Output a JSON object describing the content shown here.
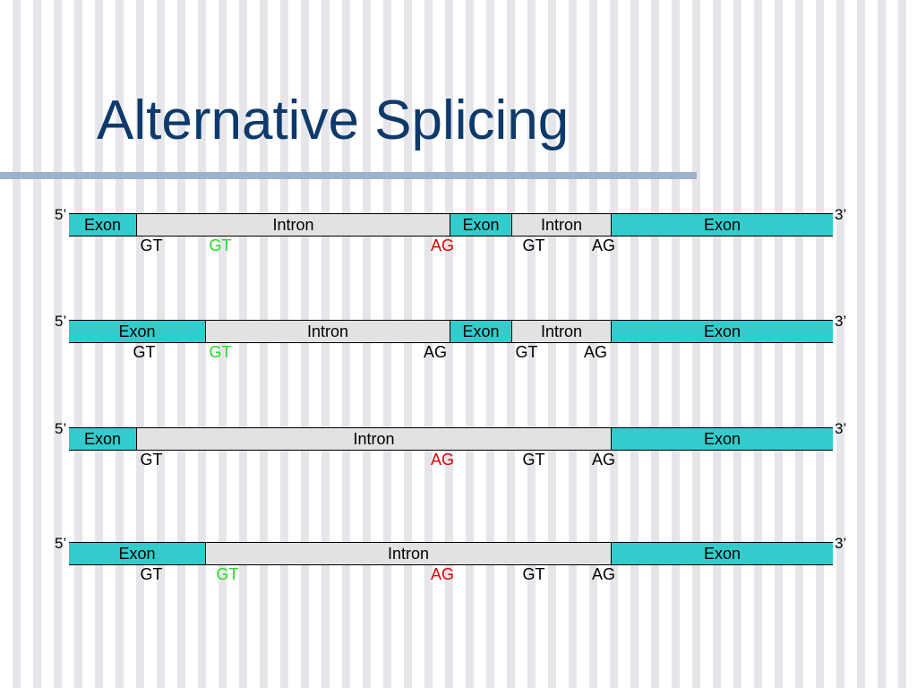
{
  "title": "Alternative Splicing",
  "colors": {
    "title": "#0e3a6b",
    "exon": "#33cccc",
    "intron": "#e2e2e2",
    "green": "#22dd22",
    "red": "#dd0000",
    "black": "#000000"
  },
  "rows": [
    {
      "five_prime": "5’",
      "three_prime": "3’",
      "segments": [
        {
          "type": "exon",
          "label": "Exon"
        },
        {
          "type": "intron",
          "label": "Intron"
        },
        {
          "type": "exon",
          "label": "Exon"
        },
        {
          "type": "intron",
          "label": "Intron"
        },
        {
          "type": "exon",
          "label": "Exon"
        }
      ],
      "sites": [
        {
          "label": "GT",
          "color": "black"
        },
        {
          "label": "GT",
          "color": "green"
        },
        {
          "label": "AG",
          "color": "red"
        },
        {
          "label": "GT",
          "color": "black"
        },
        {
          "label": "AG",
          "color": "black"
        }
      ]
    },
    {
      "five_prime": "5’",
      "three_prime": "3’",
      "segments": [
        {
          "type": "exon",
          "label": "Exon"
        },
        {
          "type": "intron",
          "label": "Intron"
        },
        {
          "type": "exon",
          "label": "Exon"
        },
        {
          "type": "intron",
          "label": "Intron"
        },
        {
          "type": "exon",
          "label": "Exon"
        }
      ],
      "sites": [
        {
          "label": "GT",
          "color": "black"
        },
        {
          "label": "GT",
          "color": "green"
        },
        {
          "label": "AG",
          "color": "black"
        },
        {
          "label": "GT",
          "color": "black"
        },
        {
          "label": "AG",
          "color": "black"
        }
      ]
    },
    {
      "five_prime": "5’",
      "three_prime": "3’",
      "segments": [
        {
          "type": "exon",
          "label": "Exon"
        },
        {
          "type": "intron",
          "label": "Intron"
        },
        {
          "type": "exon",
          "label": "Exon"
        }
      ],
      "sites": [
        {
          "label": "GT",
          "color": "black"
        },
        {
          "label": "AG",
          "color": "red"
        },
        {
          "label": "GT",
          "color": "black"
        },
        {
          "label": "AG",
          "color": "black"
        }
      ]
    },
    {
      "five_prime": "5’",
      "three_prime": "3’",
      "segments": [
        {
          "type": "exon",
          "label": "Exon"
        },
        {
          "type": "intron",
          "label": "Intron"
        },
        {
          "type": "exon",
          "label": "Exon"
        }
      ],
      "sites": [
        {
          "label": "GT",
          "color": "black"
        },
        {
          "label": "GT",
          "color": "green"
        },
        {
          "label": "AG",
          "color": "red"
        },
        {
          "label": "GT",
          "color": "black"
        },
        {
          "label": "AG",
          "color": "black"
        }
      ]
    }
  ]
}
